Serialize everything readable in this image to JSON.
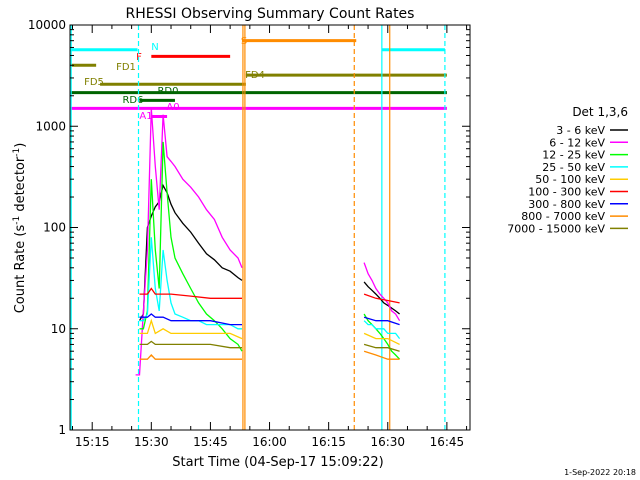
{
  "chart_data": {
    "type": "line",
    "title": "RHESSI Observing Summary Count Rates",
    "xlabel": "Start Time (04-Sep-17 15:09:22)",
    "ylabel": "Count Rate (s⁻¹ detector⁻¹)",
    "ylabel_main": "Count Rate (s",
    "ylabel_mid": " detector",
    "ylabel_end": ")",
    "ylabel_sup": "-1",
    "y_scale": "log",
    "xlim_minutes_after_1509": [
      0,
      101.5
    ],
    "ylim": [
      1,
      10000
    ],
    "x_tick_labels": [
      "15:15",
      "15:30",
      "15:45",
      "16:00",
      "16:15",
      "16:30",
      "16:45"
    ],
    "x_tick_values": [
      "15:15",
      "15:30",
      "15:45",
      "16:00",
      "16:15",
      "16:30",
      "16:45"
    ],
    "y_tick_labels": [
      "1",
      "10",
      "100",
      "1000",
      "10000"
    ],
    "y_tick_values": [
      1,
      10,
      100,
      1000,
      10000
    ],
    "legend_title": "Det 1,3,6",
    "legend_position": "right",
    "series": [
      {
        "name": "3 - 6 keV",
        "color": "#000000",
        "segments": [
          {
            "t": [
              "15:27",
              "15:28",
              "15:29",
              "15:30",
              "15:31",
              "15:32",
              "15:33",
              "15:34",
              "15:35",
              "15:36",
              "15:38",
              "15:40",
              "15:42",
              "15:44",
              "15:46",
              "15:48",
              "15:50",
              "15:52",
              "15:53"
            ],
            "v": [
              12,
              14,
              100,
              130,
              160,
              180,
              260,
              220,
              170,
              140,
              110,
              90,
              70,
              55,
              48,
              40,
              37,
              32,
              30
            ]
          },
          {
            "t": [
              "16:24",
              "16:25",
              "16:26",
              "16:27",
              "16:28",
              "16:29",
              "16:30",
              "16:31",
              "16:32",
              "16:33"
            ],
            "v": [
              29,
              26,
              24,
              22,
              20,
              18,
              17,
              16,
              15,
              14
            ]
          }
        ]
      },
      {
        "name": "6 - 12 keV",
        "color": "#ff00ff",
        "segments": [
          {
            "t": [
              "15:26",
              "15:27",
              "15:28",
              "15:29",
              "15:30",
              "15:31",
              "15:32",
              "15:33",
              "15:34",
              "15:35",
              "15:36",
              "15:38",
              "15:40",
              "15:42",
              "15:44",
              "15:46",
              "15:48",
              "15:50",
              "15:52",
              "15:53"
            ],
            "v": [
              3.5,
              3.5,
              15,
              60,
              1500,
              400,
              150,
              1300,
              500,
              450,
              400,
              300,
              250,
              200,
              150,
              120,
              80,
              60,
              50,
              40
            ]
          },
          {
            "t": [
              "16:24",
              "16:25",
              "16:26",
              "16:27",
              "16:28",
              "16:29",
              "16:30",
              "16:31",
              "16:32",
              "16:33"
            ],
            "v": [
              45,
              35,
              30,
              25,
              22,
              20,
              18,
              15,
              14,
              12
            ]
          }
        ]
      },
      {
        "name": "12 - 25 keV",
        "color": "#00ff00",
        "segments": [
          {
            "t": [
              "15:27",
              "15:28",
              "15:29",
              "15:30",
              "15:31",
              "15:32",
              "15:33",
              "15:34",
              "15:35",
              "15:36",
              "15:38",
              "15:40",
              "15:42",
              "15:44",
              "15:46",
              "15:48",
              "15:50",
              "15:52",
              "15:53"
            ],
            "v": [
              10,
              10,
              15,
              300,
              60,
              25,
              700,
              220,
              80,
              50,
              35,
              25,
              18,
              14,
              12,
              10,
              8,
              7,
              6
            ]
          },
          {
            "t": [
              "16:24",
              "16:25",
              "16:26",
              "16:27",
              "16:28",
              "16:29",
              "16:30",
              "16:31",
              "16:32",
              "16:33"
            ],
            "v": [
              14,
              12,
              11,
              10,
              9,
              8,
              7,
              6,
              5.5,
              5
            ]
          }
        ]
      },
      {
        "name": "25 - 50 keV",
        "color": "#00ffff",
        "segments": [
          {
            "t": [
              "15:27",
              "15:28",
              "15:29",
              "15:30",
              "15:31",
              "15:32",
              "15:33",
              "15:34",
              "15:35",
              "15:36",
              "15:38",
              "15:40",
              "15:42",
              "15:44",
              "15:46",
              "15:48",
              "15:50",
              "15:52",
              "15:53"
            ],
            "v": [
              12,
              12,
              14,
              80,
              25,
              15,
              60,
              30,
              18,
              14,
              13,
              12,
              12,
              11,
              11,
              11,
              11,
              10,
              10
            ]
          },
          {
            "t": [
              "16:24",
              "16:25",
              "16:26",
              "16:27",
              "16:28",
              "16:29",
              "16:30",
              "16:31",
              "16:32",
              "16:33"
            ],
            "v": [
              12,
              11,
              11,
              10,
              10,
              10,
              9,
              9,
              9,
              8
            ]
          }
        ]
      },
      {
        "name": "50 - 100 keV",
        "color": "#ffcc00",
        "segments": [
          {
            "t": [
              "15:27",
              "15:29",
              "15:30",
              "15:31",
              "15:33",
              "15:35",
              "15:40",
              "15:45",
              "15:50",
              "15:53"
            ],
            "v": [
              9,
              9,
              12,
              9,
              10,
              9,
              9,
              9,
              9,
              8
            ]
          },
          {
            "t": [
              "16:24",
              "16:27",
              "16:30",
              "16:33"
            ],
            "v": [
              9,
              8,
              8,
              7
            ]
          }
        ]
      },
      {
        "name": "100 - 300 keV",
        "color": "#ff0000",
        "segments": [
          {
            "t": [
              "15:27",
              "15:29",
              "15:30",
              "15:31",
              "15:33",
              "15:35",
              "15:40",
              "15:45",
              "15:50",
              "15:53"
            ],
            "v": [
              22,
              22,
              25,
              22,
              22,
              22,
              21,
              20,
              20,
              20
            ]
          },
          {
            "t": [
              "16:24",
              "16:27",
              "16:30",
              "16:33"
            ],
            "v": [
              22,
              20,
              19,
              18
            ]
          }
        ]
      },
      {
        "name": "300 - 800 keV",
        "color": "#0000ff",
        "segments": [
          {
            "t": [
              "15:27",
              "15:29",
              "15:30",
              "15:31",
              "15:33",
              "15:35",
              "15:40",
              "15:45",
              "15:50",
              "15:53"
            ],
            "v": [
              13,
              13,
              14,
              13,
              13,
              12,
              12,
              12,
              11,
              11
            ]
          },
          {
            "t": [
              "16:24",
              "16:27",
              "16:30",
              "16:33"
            ],
            "v": [
              13,
              12,
              12,
              11
            ]
          }
        ]
      },
      {
        "name": "800 - 7000 keV",
        "color": "#ff8c00",
        "segments": [
          {
            "t": [
              "15:27",
              "15:29",
              "15:30",
              "15:31",
              "15:33",
              "15:35",
              "15:40",
              "15:45",
              "15:50",
              "15:53"
            ],
            "v": [
              5,
              5,
              5.5,
              5,
              5,
              5,
              5,
              5,
              5,
              5
            ]
          },
          {
            "t": [
              "16:24",
              "16:27",
              "16:30",
              "16:33"
            ],
            "v": [
              6,
              5.5,
              5,
              5
            ]
          }
        ]
      },
      {
        "name": "7000 - 15000 keV",
        "color": "#808000",
        "segments": [
          {
            "t": [
              "15:27",
              "15:29",
              "15:30",
              "15:31",
              "15:33",
              "15:35",
              "15:40",
              "15:45",
              "15:50",
              "15:53"
            ],
            "v": [
              7,
              7,
              7.5,
              7,
              7,
              7,
              7,
              7,
              6.5,
              6.5
            ]
          },
          {
            "t": [
              "16:24",
              "16:27",
              "16:30",
              "16:33"
            ],
            "v": [
              7,
              6.5,
              6.5,
              6
            ]
          }
        ]
      }
    ],
    "flag_bars": [
      {
        "label": "N",
        "color": "#00ffff",
        "y": 5700,
        "ranges": [
          [
            "15:09:22",
            "15:26:30"
          ],
          [
            "16:28:30",
            "16:44:30"
          ]
        ]
      },
      {
        "label": "F",
        "color": "#ff0000",
        "y": 4900,
        "ranges": [
          [
            "15:30",
            "15:50"
          ]
        ]
      },
      {
        "label": "S",
        "color": "#ff8c00",
        "y": 7000,
        "ranges": [
          [
            "15:53",
            "16:22"
          ]
        ]
      },
      {
        "label": "FD1",
        "color": "#808000",
        "y": 4000,
        "ranges": [
          [
            "15:09:22",
            "15:16"
          ]
        ]
      },
      {
        "label": "FD4",
        "color": "#808000",
        "y": 3200,
        "ranges": [
          [
            "15:54",
            "16:45"
          ]
        ]
      },
      {
        "label": "FD5",
        "color": "#808000",
        "y": 2600,
        "ranges": [
          [
            "15:17",
            "15:54"
          ]
        ]
      },
      {
        "label": "RD0",
        "color": "#006400",
        "y": 2150,
        "ranges": [
          [
            "15:09:22",
            "16:45"
          ]
        ]
      },
      {
        "label": "RD6",
        "color": "#006400",
        "y": 1800,
        "ranges": [
          [
            "15:27",
            "15:36"
          ]
        ]
      },
      {
        "label": "A0",
        "color": "#ff00ff",
        "y": 1500,
        "ranges": [
          [
            "15:09:22",
            "16:45"
          ]
        ]
      },
      {
        "label": "A1",
        "color": "#ff00ff",
        "y": 1250,
        "ranges": [
          [
            "15:30",
            "15:34"
          ]
        ]
      }
    ],
    "vertical_lines": [
      {
        "t": "15:09:40",
        "color": "#00ffff",
        "style": "solid"
      },
      {
        "t": "15:26:45",
        "color": "#00ffff",
        "style": "dashed"
      },
      {
        "t": "15:53:15",
        "color": "#ff8c00",
        "style": "solid"
      },
      {
        "t": "15:53:45",
        "color": "#ff8c00",
        "style": "solid"
      },
      {
        "t": "16:21:30",
        "color": "#ff8c00",
        "style": "dashed"
      },
      {
        "t": "16:28:30",
        "color": "#00ffff",
        "style": "solid"
      },
      {
        "t": "16:30:30",
        "color": "#ff8c00",
        "style": "solid"
      },
      {
        "t": "16:44:30",
        "color": "#00ffff",
        "style": "dashed"
      }
    ],
    "footer_timestamp": "1-Sep-2022 20:18"
  }
}
